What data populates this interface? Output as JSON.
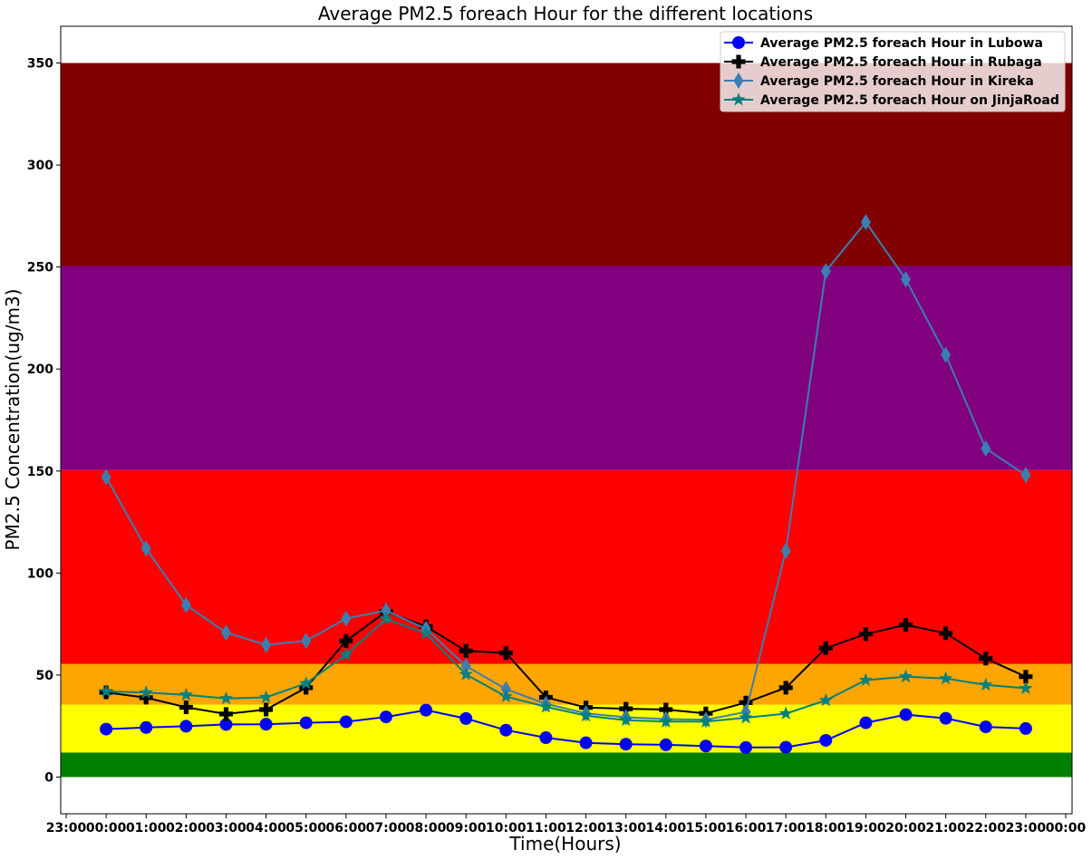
{
  "chart_data": {
    "type": "line",
    "title": "Average PM2.5 foreach Hour for the different locations",
    "xlabel": "Time(Hours)",
    "ylabel": "PM2.5 Concentration(ug/m3)",
    "x_tick_labels": [
      "23:00",
      "00:00",
      "01:00",
      "02:00",
      "03:00",
      "04:00",
      "05:00",
      "06:00",
      "07:00",
      "08:00",
      "09:00",
      "10:00",
      "11:00",
      "12:00",
      "13:00",
      "14:00",
      "15:00",
      "16:00",
      "17:00",
      "18:00",
      "19:00",
      "20:00",
      "21:00",
      "22:00",
      "23:00",
      "00:00"
    ],
    "categories": [
      "00:00",
      "01:00",
      "02:00",
      "03:00",
      "04:00",
      "05:00",
      "06:00",
      "07:00",
      "08:00",
      "09:00",
      "10:00",
      "11:00",
      "12:00",
      "13:00",
      "14:00",
      "15:00",
      "16:00",
      "17:00",
      "18:00",
      "19:00",
      "20:00",
      "21:00",
      "22:00",
      "23:00"
    ],
    "y_ticks": [
      0,
      50,
      100,
      150,
      200,
      250,
      300,
      350
    ],
    "ylim": [
      -18,
      368
    ],
    "grid": false,
    "legend_position": "top-right",
    "bands": [
      {
        "from": 0,
        "to": 12,
        "color": "#008000"
      },
      {
        "from": 12,
        "to": 35.5,
        "color": "#ffff00"
      },
      {
        "from": 35.5,
        "to": 55.5,
        "color": "#ffa500"
      },
      {
        "from": 55.5,
        "to": 150.5,
        "color": "#ff0000"
      },
      {
        "from": 150.5,
        "to": 250.5,
        "color": "#800080"
      },
      {
        "from": 250.5,
        "to": 350,
        "color": "#800000"
      }
    ],
    "series": [
      {
        "name": "Average PM2.5 foreach Hour in Lubowa",
        "color": "#0000ff",
        "marker": "circle",
        "values": [
          23.5,
          24.3,
          24.9,
          25.8,
          25.9,
          26.6,
          27.1,
          29.5,
          32.8,
          28.7,
          23,
          19.3,
          16.8,
          16.1,
          15.8,
          15.2,
          14.5,
          14.6,
          18,
          26.6,
          30.6,
          28.8,
          24.6,
          23.8
        ]
      },
      {
        "name": "Average PM2.5 foreach Hour in Rubaga",
        "color": "#000000",
        "marker": "plus",
        "values": [
          41.5,
          38.9,
          34.2,
          30.9,
          33.1,
          43.8,
          66.7,
          81.1,
          73.8,
          61.8,
          60.8,
          39.1,
          34.1,
          33.5,
          33.1,
          31.2,
          36.5,
          43.8,
          63.2,
          70.1,
          74.6,
          70.5,
          58.1,
          49.2
        ]
      },
      {
        "name": "Average PM2.5 foreach Hour in Kireka",
        "color": "#3a7fb0",
        "marker": "diamond",
        "values": [
          147,
          112,
          84.3,
          70.8,
          64.8,
          66.8,
          77.7,
          81.6,
          72.7,
          54.4,
          43.1,
          35.9,
          31.2,
          29.3,
          28.4,
          28.1,
          31.9,
          110.9,
          248,
          272,
          244,
          207,
          161,
          148
        ]
      },
      {
        "name": "Average PM2.5 foreach Hour on JinjaRoad",
        "color": "#008080",
        "marker": "star",
        "values": [
          42,
          41.4,
          40.3,
          38.5,
          39.1,
          45.9,
          60,
          77.5,
          70.4,
          50.3,
          39.5,
          34.4,
          30.1,
          27.9,
          27.2,
          27.2,
          29.1,
          31.1,
          37.6,
          47.5,
          49.2,
          48.3,
          45.2,
          43.5
        ]
      }
    ]
  }
}
